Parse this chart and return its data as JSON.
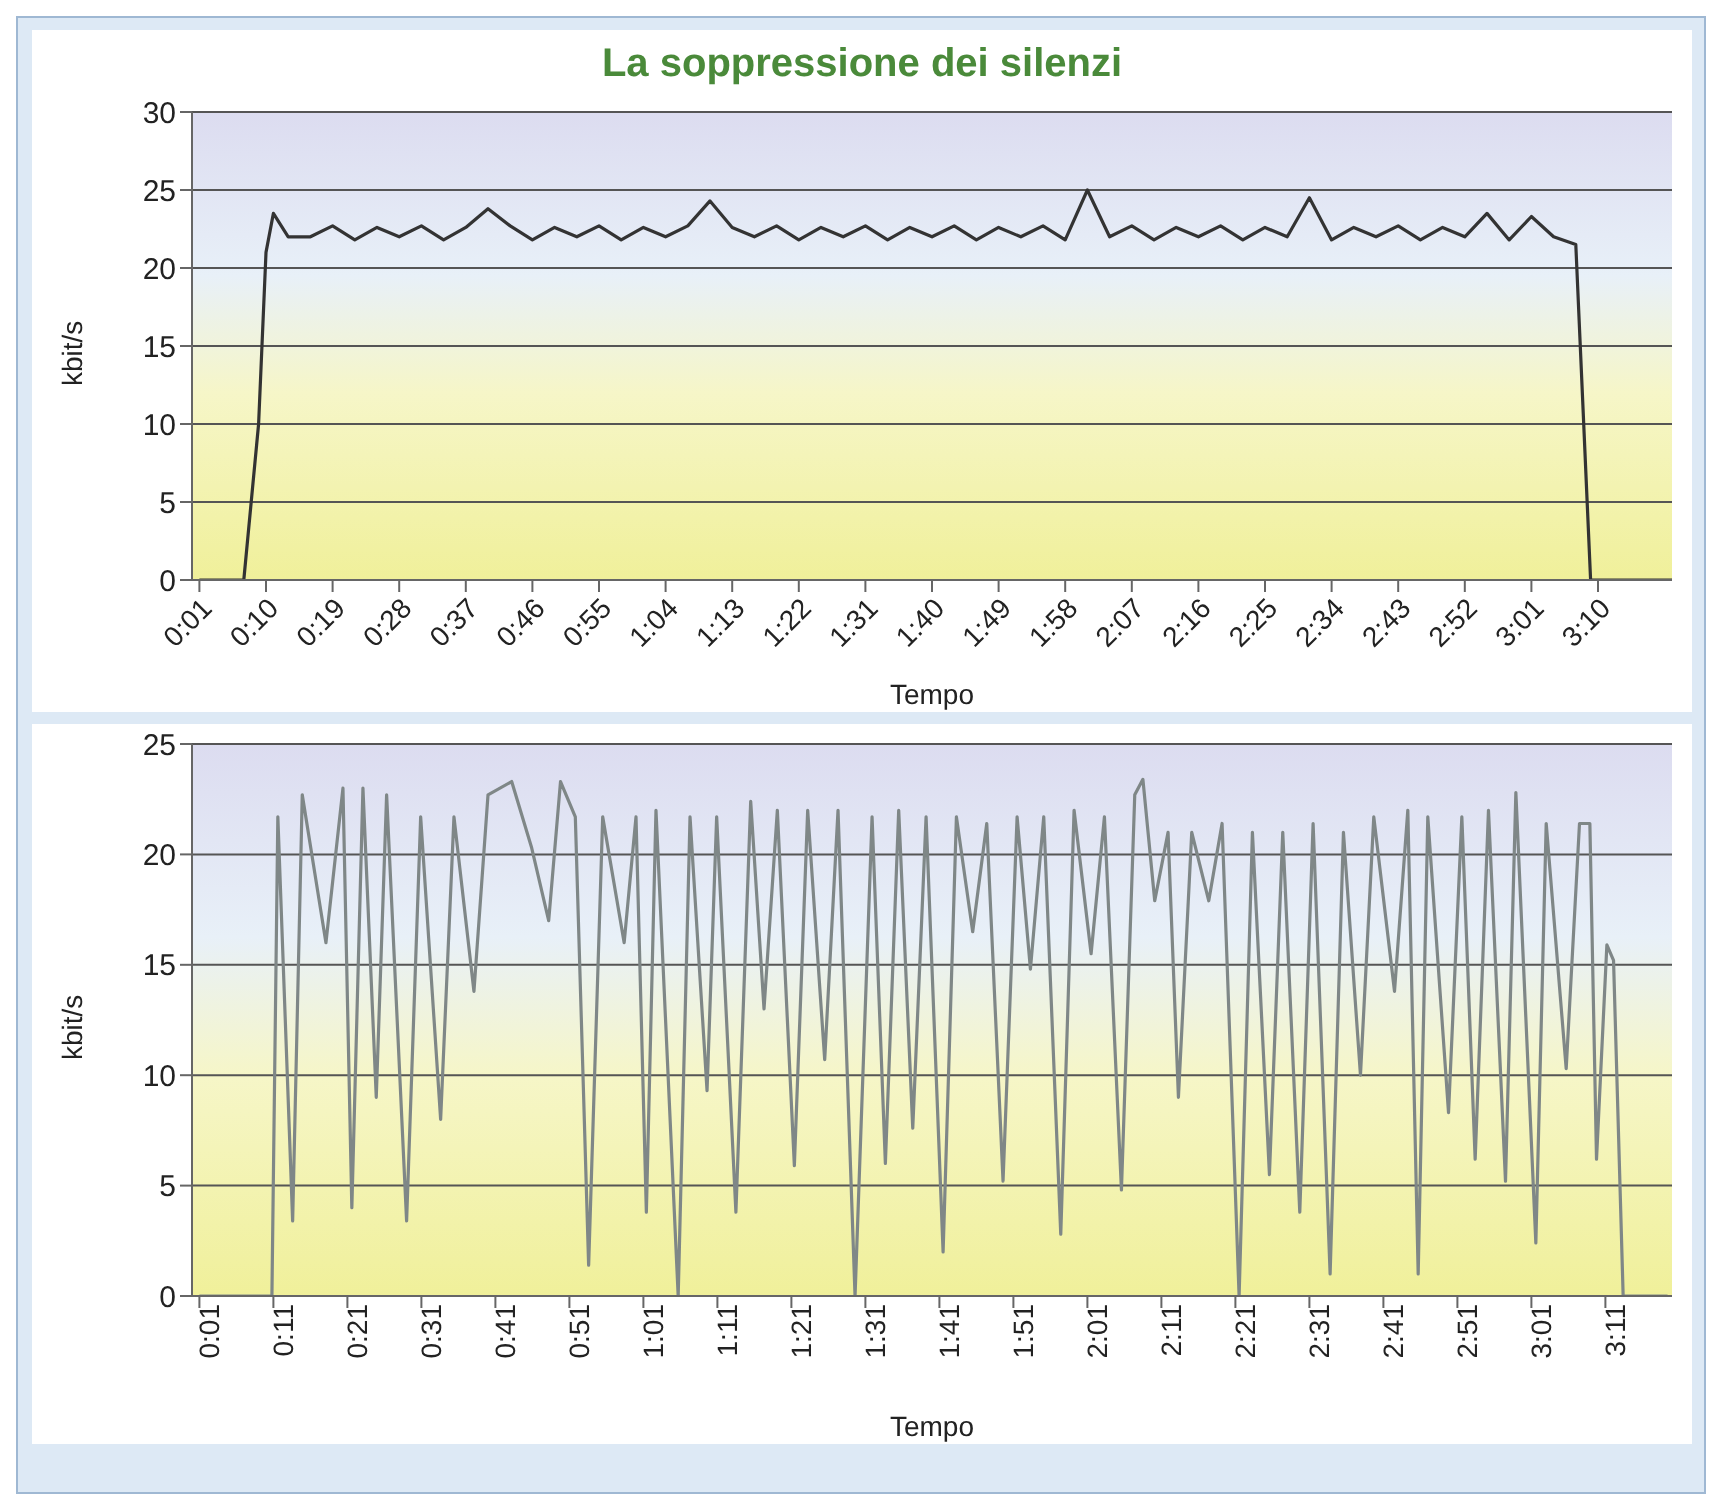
{
  "chart_data": [
    {
      "type": "line",
      "title": "La soppressione dei silenzi",
      "xlabel": "Tempo",
      "ylabel": "kbit/s",
      "xlim": [
        0,
        200
      ],
      "ylim": [
        0,
        30
      ],
      "yticks": [
        0,
        5,
        10,
        15,
        20,
        25,
        30
      ],
      "xticks": [
        {
          "value": 1,
          "label": "0:01"
        },
        {
          "value": 10,
          "label": "0:10"
        },
        {
          "value": 19,
          "label": "0:19"
        },
        {
          "value": 28,
          "label": "0:28"
        },
        {
          "value": 37,
          "label": "0:37"
        },
        {
          "value": 46,
          "label": "0:46"
        },
        {
          "value": 55,
          "label": "0:55"
        },
        {
          "value": 64,
          "label": "1:04"
        },
        {
          "value": 73,
          "label": "1:13"
        },
        {
          "value": 82,
          "label": "1:22"
        },
        {
          "value": 91,
          "label": "1:31"
        },
        {
          "value": 100,
          "label": "1:40"
        },
        {
          "value": 109,
          "label": "1:49"
        },
        {
          "value": 118,
          "label": "1:58"
        },
        {
          "value": 127,
          "label": "2:07"
        },
        {
          "value": 136,
          "label": "2:16"
        },
        {
          "value": 145,
          "label": "2:25"
        },
        {
          "value": 154,
          "label": "2:34"
        },
        {
          "value": 163,
          "label": "2:43"
        },
        {
          "value": 172,
          "label": "2:52"
        },
        {
          "value": 181,
          "label": "3:01"
        },
        {
          "value": 190,
          "label": "3:10"
        }
      ],
      "grid": "y",
      "marker": "none",
      "line_style": "solid",
      "series": [
        {
          "color": "#333333",
          "x": [
            1,
            7,
            9,
            10,
            11,
            13,
            16,
            19,
            22,
            25,
            28,
            31,
            34,
            37,
            40,
            43,
            46,
            49,
            52,
            55,
            58,
            61,
            64,
            67,
            70,
            73,
            76,
            79,
            82,
            85,
            88,
            91,
            94,
            97,
            100,
            103,
            106,
            109,
            112,
            115,
            118,
            121,
            124,
            127,
            130,
            133,
            136,
            139,
            142,
            145,
            148,
            151,
            154,
            157,
            160,
            163,
            166,
            169,
            172,
            175,
            178,
            181,
            184,
            187,
            189,
            200
          ],
          "values": [
            0,
            0,
            10,
            21,
            23.5,
            22,
            22,
            22.7,
            21.8,
            22.6,
            22,
            22.7,
            21.8,
            22.6,
            23.8,
            22.7,
            21.8,
            22.6,
            22,
            22.7,
            21.8,
            22.6,
            22,
            22.7,
            24.3,
            22.6,
            22,
            22.7,
            21.8,
            22.6,
            22,
            22.7,
            21.8,
            22.6,
            22,
            22.7,
            21.8,
            22.6,
            22,
            22.7,
            21.8,
            25,
            22,
            22.7,
            21.8,
            22.6,
            22,
            22.7,
            21.8,
            22.6,
            22,
            24.5,
            21.8,
            22.6,
            22,
            22.7,
            21.8,
            22.6,
            22,
            23.5,
            21.8,
            23.3,
            22,
            21.5,
            0,
            0
          ]
        }
      ]
    },
    {
      "type": "line",
      "xlabel": "Tempo",
      "ylabel": "kbit/s",
      "xlim": [
        0,
        200
      ],
      "ylim": [
        0,
        25
      ],
      "yticks": [
        0,
        5,
        10,
        15,
        20,
        25
      ],
      "xticks": [
        {
          "value": 1,
          "label": "0:01"
        },
        {
          "value": 11,
          "label": "0:11"
        },
        {
          "value": 21,
          "label": "0:21"
        },
        {
          "value": 31,
          "label": "0:31"
        },
        {
          "value": 41,
          "label": "0:41"
        },
        {
          "value": 51,
          "label": "0:51"
        },
        {
          "value": 61,
          "label": "1:01"
        },
        {
          "value": 71,
          "label": "1:11"
        },
        {
          "value": 81,
          "label": "1:21"
        },
        {
          "value": 91,
          "label": "1:31"
        },
        {
          "value": 101,
          "label": "1:41"
        },
        {
          "value": 111,
          "label": "1:51"
        },
        {
          "value": 121,
          "label": "2:01"
        },
        {
          "value": 131,
          "label": "2:11"
        },
        {
          "value": 141,
          "label": "2:21"
        },
        {
          "value": 151,
          "label": "2:31"
        },
        {
          "value": 161,
          "label": "2:41"
        },
        {
          "value": 171,
          "label": "2:51"
        },
        {
          "value": 181,
          "label": "3:01"
        },
        {
          "value": 191,
          "label": "3:11"
        }
      ],
      "grid": "y",
      "marker": "none",
      "line_style": "solid",
      "series": [
        {
          "color": "#7f8787",
          "x": [
            1,
            10.8,
            11.6,
            13.6,
            14.9,
            18.1,
            20.4,
            21.6,
            23.1,
            24.9,
            26.3,
            29,
            30.9,
            33.6,
            35.4,
            38.1,
            40,
            43.2,
            45.9,
            48.2,
            49.8,
            51.8,
            53.6,
            55.5,
            58.4,
            60,
            61.4,
            62.7,
            65.7,
            67.3,
            69.6,
            70.9,
            73.5,
            75.5,
            77.3,
            79.1,
            81.4,
            83.2,
            85.5,
            87.3,
            89.6,
            91.9,
            93.7,
            95.5,
            97.4,
            99.2,
            101.5,
            103.3,
            105.5,
            107.4,
            109.6,
            111.5,
            113.3,
            115.1,
            117.4,
            119.2,
            121.5,
            123.3,
            125.6,
            127.4,
            128.5,
            130.1,
            131.9,
            133.3,
            135.1,
            137.4,
            139.2,
            141.5,
            143.3,
            145.6,
            147.4,
            149.7,
            151.5,
            153.8,
            155.6,
            157.9,
            159.7,
            162.5,
            164.3,
            165.7,
            167,
            169.8,
            171.6,
            173.4,
            175.2,
            177.5,
            178.9,
            181.6,
            183,
            185.7,
            187.5,
            188.9,
            189.8,
            191.2,
            192.1,
            193.4,
            199.4
          ],
          "values": [
            0,
            0,
            21.7,
            3.4,
            22.7,
            16,
            23,
            4,
            23,
            9,
            22.7,
            3.4,
            21.7,
            8,
            21.7,
            13.8,
            22.7,
            23.3,
            20.3,
            17,
            23.3,
            21.7,
            1.4,
            21.7,
            16,
            21.7,
            3.8,
            22,
            0,
            21.7,
            9.3,
            21.7,
            3.8,
            22.4,
            13,
            22,
            5.9,
            22,
            10.7,
            22,
            0,
            21.7,
            6,
            22,
            7.6,
            21.7,
            2,
            21.7,
            16.5,
            21.4,
            5.2,
            21.7,
            14.8,
            21.7,
            2.8,
            22,
            15.5,
            21.7,
            4.8,
            22.7,
            23.4,
            17.9,
            21,
            9,
            21,
            17.9,
            21.4,
            0,
            21,
            5.5,
            21,
            3.8,
            21.4,
            1,
            21,
            10,
            21.7,
            13.8,
            22,
            1,
            21.7,
            8.3,
            21.7,
            6.2,
            22,
            5.2,
            22.8,
            2.4,
            21.4,
            10.3,
            21.4,
            21.4,
            6.2,
            15.9,
            15.2,
            0,
            0
          ]
        }
      ]
    }
  ]
}
